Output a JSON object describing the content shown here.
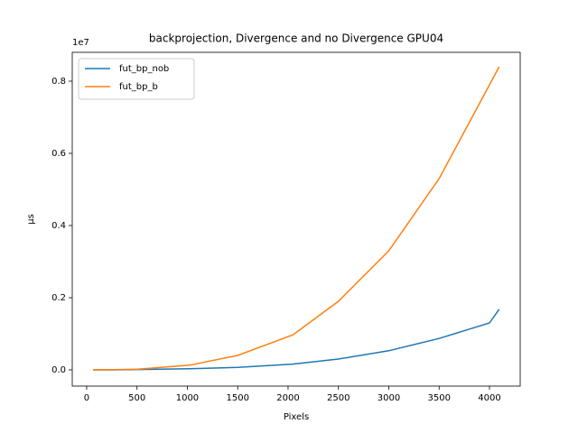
{
  "chart_data": {
    "type": "line",
    "title": "backprojection, Divergence and no Divergence GPU04",
    "x_label": "Pixels",
    "y_label": "μs",
    "y_offset_label": "1e7",
    "x": [
      64,
      256,
      512,
      1024,
      1500,
      2048,
      2500,
      3000,
      3500,
      4000,
      4096
    ],
    "series": [
      {
        "name": "fut_bp_nob",
        "color": "#1f77b4",
        "values": [
          0,
          0,
          0.001,
          0.003,
          0.007,
          0.016,
          0.03,
          0.053,
          0.087,
          0.13,
          0.168
        ]
      },
      {
        "name": "fut_bp_b",
        "color": "#ff7f0e",
        "values": [
          0,
          0.0005,
          0.002,
          0.013,
          0.04,
          0.097,
          0.19,
          0.33,
          0.53,
          0.79,
          0.84
        ]
      }
    ],
    "xlim": [
      -143,
      4305
    ],
    "ylim": [
      -0.045,
      0.88
    ],
    "xticks": [
      0,
      500,
      1000,
      1500,
      2000,
      2500,
      3000,
      3500,
      4000
    ],
    "yticks": [
      {
        "value": 0,
        "label": "0.0"
      },
      {
        "value": 0.2,
        "label": "0.2"
      },
      {
        "value": 0.4,
        "label": "0.4"
      },
      {
        "value": 0.6,
        "label": "0.6"
      },
      {
        "value": 0.8,
        "label": "0.8"
      }
    ],
    "legend": "upper left"
  }
}
